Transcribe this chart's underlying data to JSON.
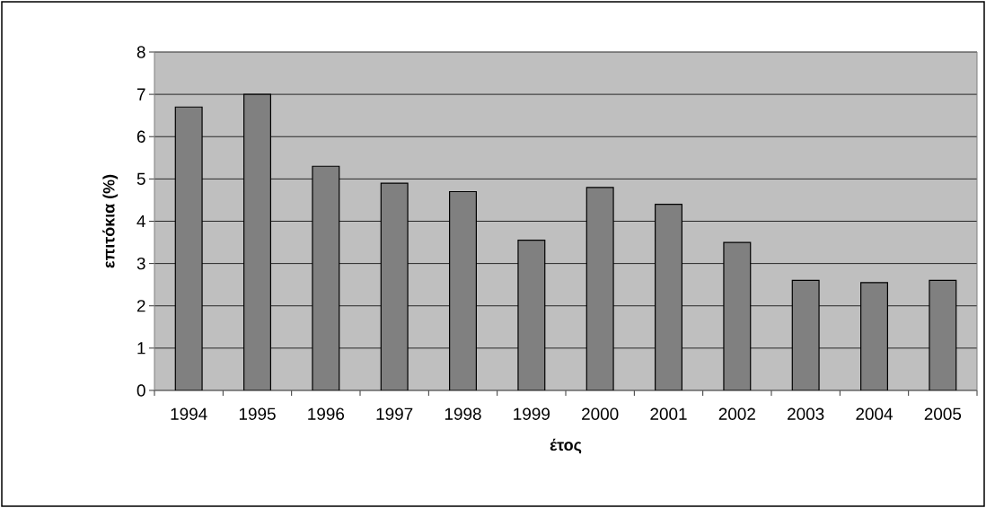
{
  "chart_data": {
    "type": "bar",
    "xlabel": "έτος",
    "ylabel": "επιτόκια (%)",
    "categories": [
      "1994",
      "1995",
      "1996",
      "1997",
      "1998",
      "1999",
      "2000",
      "2001",
      "2002",
      "2003",
      "2004",
      "2005"
    ],
    "values": [
      6.7,
      7.0,
      5.3,
      4.9,
      4.7,
      3.55,
      4.8,
      4.4,
      3.5,
      2.6,
      2.55,
      2.6
    ],
    "color": "#808080",
    "ylim": [
      0,
      8
    ],
    "yticks": [
      0,
      1,
      2,
      3,
      4,
      5,
      6,
      7,
      8
    ],
    "grid": "y"
  }
}
